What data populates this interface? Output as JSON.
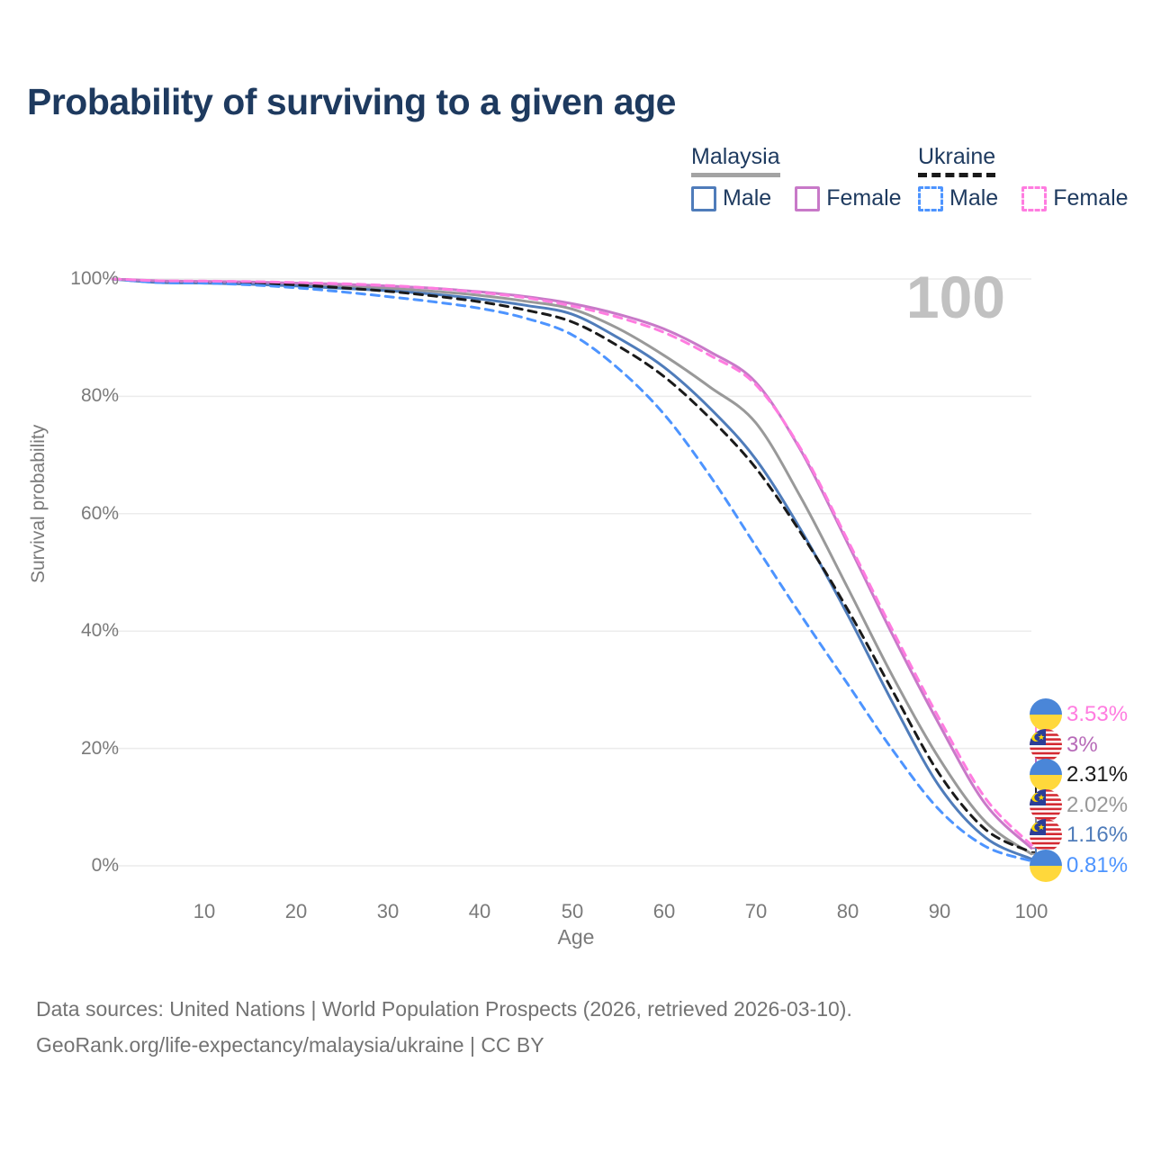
{
  "page": {
    "title": "Probability of surviving to a given age",
    "watermark_age": "100",
    "footer_line1": "Data sources: United Nations | World Population Prospects (2026, retrieved 2026-03-10).",
    "footer_line2": "GeoRank.org/life-expectancy/malaysia/ukraine | CC BY"
  },
  "legend": {
    "groups": [
      {
        "label": "Malaysia",
        "line_style": "solid",
        "underline_color": "#a3a3a3",
        "items": [
          {
            "label": "Male",
            "color": "#4f7cba"
          },
          {
            "label": "Female",
            "color": "#c879c8"
          }
        ]
      },
      {
        "label": "Ukraine",
        "line_style": "dashed",
        "underline_color": "#1a1a1a",
        "items": [
          {
            "label": "Male",
            "color": "#4d94ff"
          },
          {
            "label": "Female",
            "color": "#ff7ce0"
          }
        ]
      }
    ]
  },
  "chart_data": {
    "type": "line",
    "title": "Probability of surviving to a given age",
    "xlabel": "Age",
    "ylabel": "Survival probability",
    "xlim": [
      0,
      100
    ],
    "ylim": [
      0,
      100
    ],
    "grid": "horizontal",
    "x_ticks": [
      "10",
      "20",
      "30",
      "40",
      "50",
      "60",
      "70",
      "80",
      "90",
      "100"
    ],
    "y_ticks": [
      "100%",
      "80%",
      "60%",
      "40%",
      "20%",
      "0%"
    ],
    "hovered_x_value": "100",
    "ages": [
      0,
      5,
      10,
      15,
      20,
      25,
      30,
      35,
      40,
      45,
      50,
      55,
      60,
      65,
      70,
      75,
      80,
      85,
      90,
      95,
      100
    ],
    "series": [
      {
        "id": "malaysia-total",
        "name": "Malaysia (both sexes)",
        "country": "Malaysia",
        "sex": "total",
        "color": "#999999",
        "dash": "solid",
        "values": [
          100,
          99.5,
          99.4,
          99.3,
          99.1,
          98.8,
          98.4,
          97.9,
          97.2,
          96.2,
          94.9,
          91.6,
          87.0,
          81.6,
          75.5,
          62.5,
          47.4,
          32.0,
          18.2,
          7.5,
          2.02
        ]
      },
      {
        "id": "malaysia-male",
        "name": "Malaysia Male",
        "country": "Malaysia",
        "sex": "male",
        "color": "#4f7cba",
        "dash": "solid",
        "values": [
          100,
          99.4,
          99.3,
          99.1,
          98.8,
          98.4,
          98.0,
          97.4,
          96.6,
          95.5,
          94.0,
          90.0,
          85.0,
          78.0,
          69.3,
          57.0,
          42.8,
          27.5,
          13.5,
          4.8,
          1.16
        ]
      },
      {
        "id": "malaysia-female",
        "name": "Malaysia Female",
        "country": "Malaysia",
        "sex": "female",
        "color": "#c879c8",
        "dash": "solid",
        "values": [
          100,
          99.7,
          99.6,
          99.5,
          99.3,
          99.1,
          98.8,
          98.4,
          97.8,
          97.0,
          95.8,
          94.0,
          91.5,
          87.6,
          82.4,
          70.5,
          55.0,
          39.0,
          24.0,
          10.5,
          3.0
        ]
      },
      {
        "id": "ukraine-total",
        "name": "Ukraine (both sexes)",
        "country": "Ukraine",
        "sex": "total",
        "color": "#1a1a1a",
        "dash": "dashed",
        "values": [
          100,
          99.6,
          99.5,
          99.3,
          99.0,
          98.5,
          97.9,
          97.1,
          96.1,
          94.7,
          92.7,
          88.6,
          83.4,
          76.3,
          67.8,
          56.5,
          43.7,
          29.5,
          15.6,
          6.2,
          2.31
        ]
      },
      {
        "id": "ukraine-male",
        "name": "Ukraine Male",
        "country": "Ukraine",
        "sex": "male",
        "color": "#4d94ff",
        "dash": "dashed",
        "values": [
          100,
          99.4,
          99.3,
          99.0,
          98.5,
          97.8,
          97.0,
          96.1,
          95.0,
          93.3,
          90.5,
          84.8,
          77.0,
          66.5,
          54.5,
          42.5,
          31.0,
          19.5,
          9.5,
          3.3,
          0.81
        ]
      },
      {
        "id": "ukraine-female",
        "name": "Ukraine Female",
        "country": "Ukraine",
        "sex": "female",
        "color": "#ff7ce0",
        "dash": "dashed",
        "values": [
          100,
          99.7,
          99.65,
          99.55,
          99.4,
          99.2,
          98.9,
          98.4,
          97.7,
          96.8,
          95.4,
          93.5,
          90.9,
          87.0,
          82.0,
          70.8,
          55.5,
          39.8,
          25.0,
          11.5,
          3.53
        ]
      }
    ],
    "end_labels": [
      {
        "text": "3.53%",
        "flag": "ukraine",
        "series": "ukraine-female",
        "color": "#ff7ce0",
        "value": 3.53
      },
      {
        "text": "3%",
        "flag": "malaysia",
        "series": "malaysia-female",
        "color": "#b76ab8",
        "value": 3.0
      },
      {
        "text": "2.31%",
        "flag": "ukraine",
        "series": "ukraine-total",
        "color": "#1a1a1a",
        "value": 2.31
      },
      {
        "text": "2.02%",
        "flag": "malaysia",
        "series": "malaysia-total",
        "color": "#999999",
        "value": 2.02
      },
      {
        "text": "1.16%",
        "flag": "malaysia",
        "series": "malaysia-male",
        "color": "#4f7cba",
        "value": 1.16
      },
      {
        "text": "0.81%",
        "flag": "ukraine",
        "series": "ukraine-male",
        "color": "#4d94ff",
        "value": 0.81
      }
    ]
  }
}
